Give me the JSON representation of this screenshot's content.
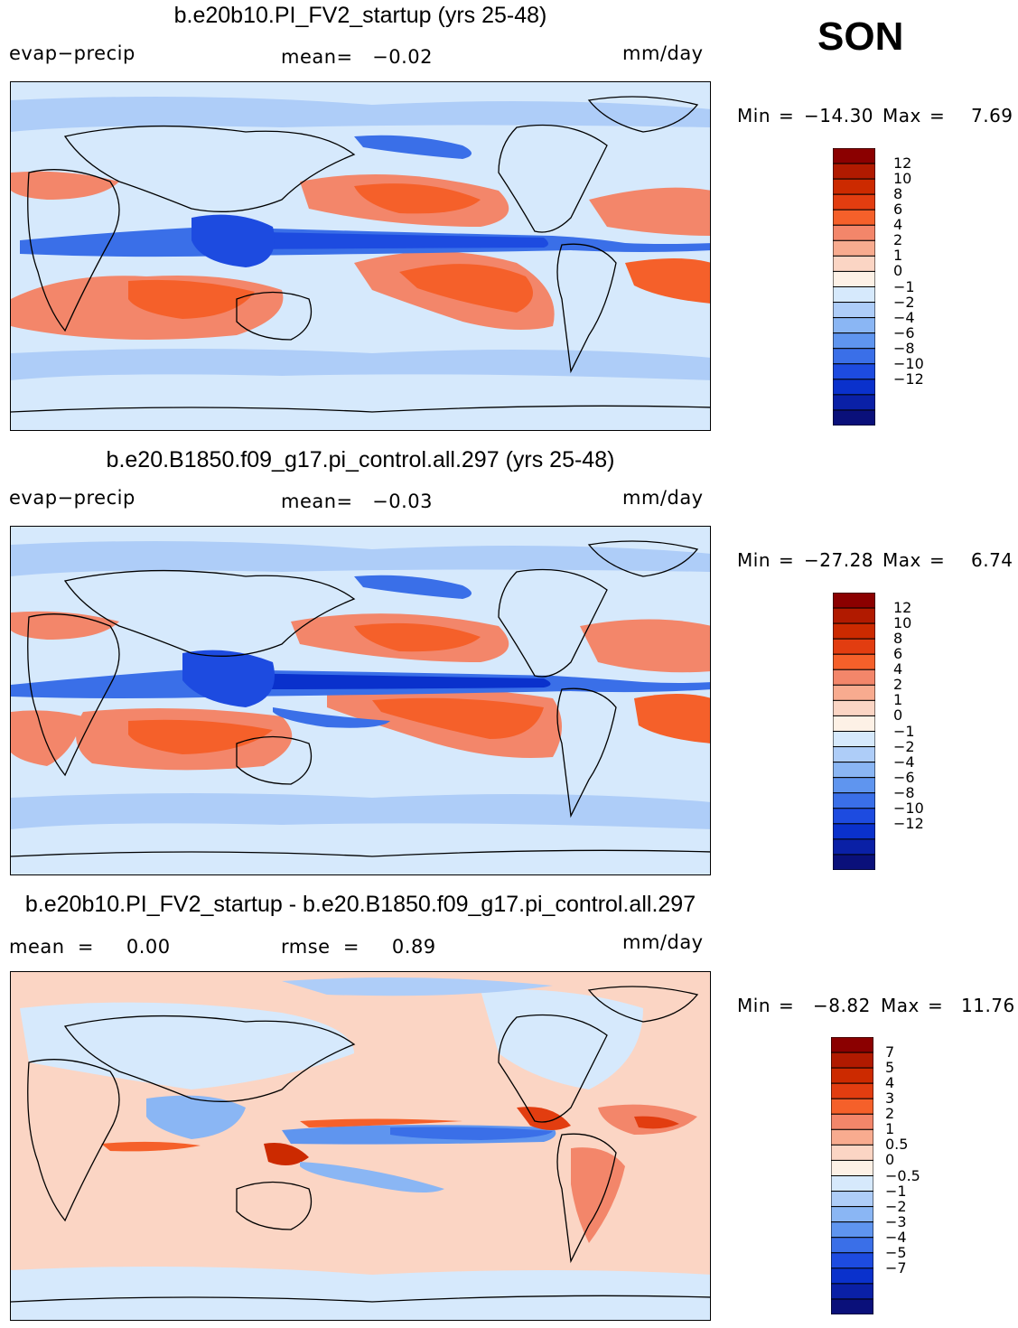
{
  "season": "SON",
  "panels": [
    {
      "title": "b.e20b10.PI_FV2_startup (yrs 25-48)",
      "left_label": "evap−precip",
      "center_label": "mean=   −0.02",
      "units": "mm/day",
      "min_label": "Min",
      "min_value": "−14.30",
      "max_label": "Max",
      "max_value": "7.69",
      "colorbar": {
        "colors": [
          "#8b0000",
          "#b11a00",
          "#cc2a00",
          "#e23d10",
          "#f5602a",
          "#f3866a",
          "#f8ab8f",
          "#fbd5c4",
          "#fdf1e6",
          "#d6e9fc",
          "#aecdf8",
          "#8ab6f4",
          "#5f95ef",
          "#3a6fe8",
          "#1d4be0",
          "#0a31cc",
          "#0a20a6",
          "#0a107a"
        ],
        "labels": [
          "12",
          "10",
          "8",
          "6",
          "4",
          "2",
          "1",
          "0",
          "−1",
          "−2",
          "−4",
          "−6",
          "−8",
          "−10",
          "−12"
        ]
      }
    },
    {
      "title": "b.e20.B1850.f09_g17.pi_control.all.297 (yrs 25-48)",
      "left_label": "evap−precip",
      "center_label": "mean=   −0.03",
      "units": "mm/day",
      "min_label": "Min",
      "min_value": "−27.28",
      "max_label": "Max",
      "max_value": "6.74",
      "colorbar": {
        "colors": [
          "#8b0000",
          "#b11a00",
          "#cc2a00",
          "#e23d10",
          "#f5602a",
          "#f3866a",
          "#f8ab8f",
          "#fbd5c4",
          "#fdf1e6",
          "#d6e9fc",
          "#aecdf8",
          "#8ab6f4",
          "#5f95ef",
          "#3a6fe8",
          "#1d4be0",
          "#0a31cc",
          "#0a20a6",
          "#0a107a"
        ],
        "labels": [
          "12",
          "10",
          "8",
          "6",
          "4",
          "2",
          "1",
          "0",
          "−1",
          "−2",
          "−4",
          "−6",
          "−8",
          "−10",
          "−12"
        ]
      }
    },
    {
      "title": "b.e20b10.PI_FV2_startup - b.e20.B1850.f09_g17.pi_control.all.297",
      "left_label": "mean  =     0.00",
      "center_label": "rmse  =     0.89",
      "units": "mm/day",
      "min_label": "Min",
      "min_value": "−8.82",
      "max_label": "Max",
      "max_value": "11.76",
      "colorbar": {
        "colors": [
          "#8b0000",
          "#b11a00",
          "#cc2a00",
          "#e23d10",
          "#f5602a",
          "#f3866a",
          "#f8ab8f",
          "#fbd5c4",
          "#fdf1e6",
          "#d6e9fc",
          "#aecdf8",
          "#8ab6f4",
          "#5f95ef",
          "#3a6fe8",
          "#1d4be0",
          "#0a31cc",
          "#0a20a6",
          "#0a107a"
        ],
        "labels": [
          "7",
          "5",
          "4",
          "3",
          "2",
          "1",
          "0.5",
          "0",
          "−0.5",
          "−1",
          "−2",
          "−3",
          "−4",
          "−5",
          "−7"
        ]
      }
    }
  ]
}
